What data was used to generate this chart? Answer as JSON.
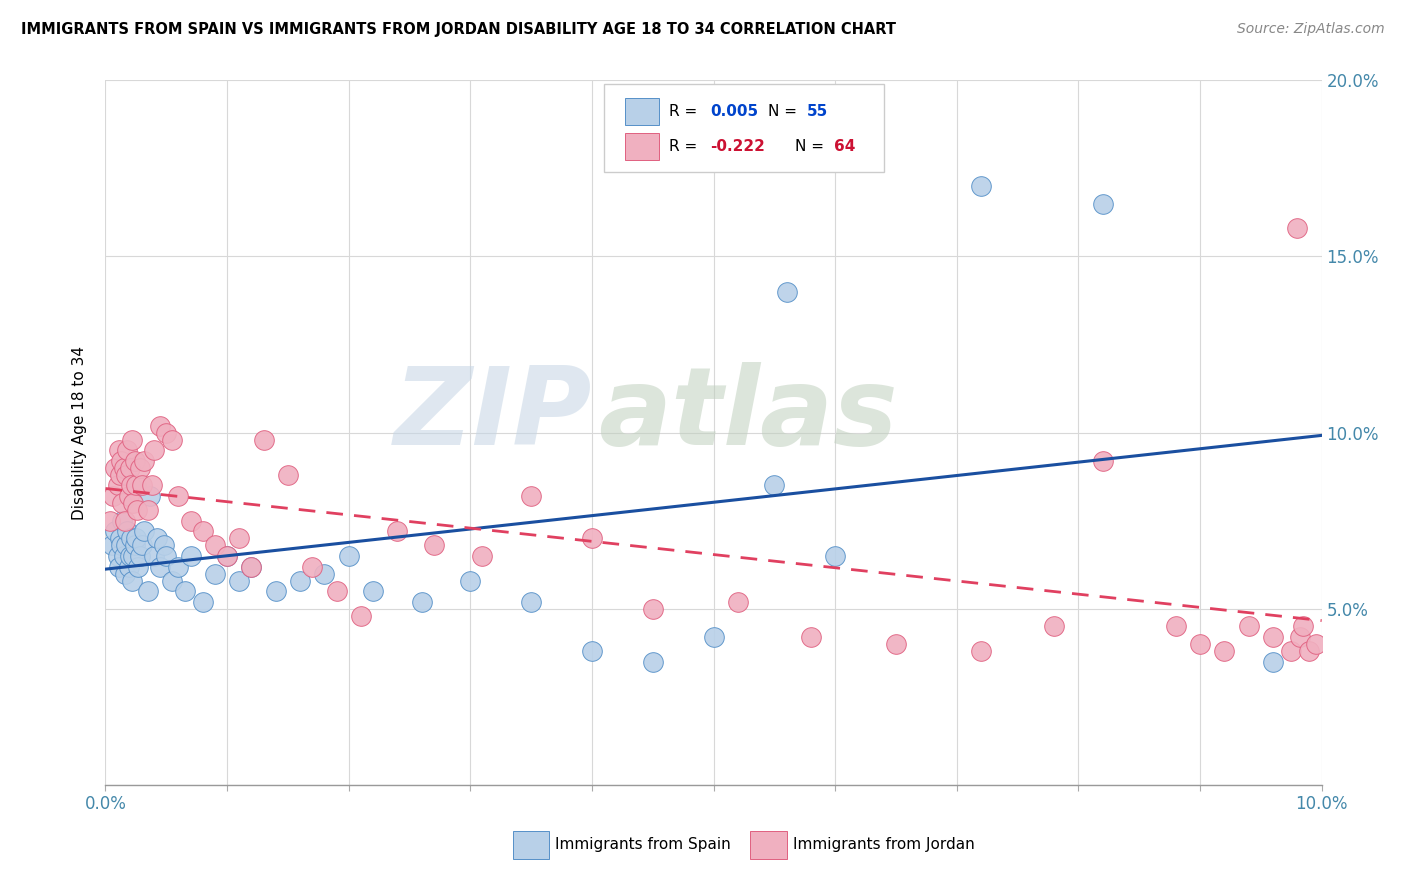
{
  "title": "IMMIGRANTS FROM SPAIN VS IMMIGRANTS FROM JORDAN DISABILITY AGE 18 TO 34 CORRELATION CHART",
  "source": "Source: ZipAtlas.com",
  "ylabel": "Disability Age 18 to 34",
  "xlim": [
    0.0,
    10.0
  ],
  "ylim": [
    0.0,
    20.0
  ],
  "color_spain_fill": "#b8d0e8",
  "color_spain_edge": "#5590c8",
  "color_jordan_fill": "#f0b0c0",
  "color_jordan_edge": "#e06080",
  "color_spain_line": "#1a4fa0",
  "color_jordan_line": "#e04060",
  "color_r_spain": "#0044cc",
  "color_r_jordan": "#cc1133",
  "color_tick": "#4488aa",
  "r_spain_label": "0.005",
  "n_spain_label": "55",
  "r_jordan_label": "-0.222",
  "n_jordan_label": "64",
  "spain_label": "Immigrants from Spain",
  "jordan_label": "Immigrants from Jordan",
  "spain_x": [
    0.05,
    0.08,
    0.1,
    0.11,
    0.12,
    0.13,
    0.14,
    0.15,
    0.16,
    0.17,
    0.18,
    0.19,
    0.2,
    0.21,
    0.22,
    0.23,
    0.24,
    0.25,
    0.27,
    0.28,
    0.3,
    0.32,
    0.35,
    0.37,
    0.4,
    0.42,
    0.45,
    0.48,
    0.5,
    0.55,
    0.6,
    0.65,
    0.7,
    0.8,
    0.9,
    1.0,
    1.1,
    1.2,
    1.4,
    1.6,
    1.8,
    2.0,
    2.2,
    2.6,
    3.0,
    3.5,
    4.0,
    4.5,
    5.0,
    5.5,
    5.6,
    6.0,
    7.2,
    8.2,
    9.6
  ],
  "spain_y": [
    6.8,
    7.2,
    6.5,
    6.2,
    7.0,
    6.8,
    7.5,
    6.5,
    6.0,
    6.8,
    7.2,
    6.2,
    6.5,
    7.0,
    5.8,
    6.5,
    6.8,
    7.0,
    6.2,
    6.5,
    6.8,
    7.2,
    5.5,
    8.2,
    6.5,
    7.0,
    6.2,
    6.8,
    6.5,
    5.8,
    6.2,
    5.5,
    6.5,
    5.2,
    6.0,
    6.5,
    5.8,
    6.2,
    5.5,
    5.8,
    6.0,
    6.5,
    5.5,
    5.2,
    5.8,
    5.2,
    3.8,
    3.5,
    4.2,
    8.5,
    14.0,
    6.5,
    17.0,
    16.5,
    3.5
  ],
  "jordan_x": [
    0.04,
    0.06,
    0.08,
    0.1,
    0.11,
    0.12,
    0.13,
    0.14,
    0.15,
    0.16,
    0.17,
    0.18,
    0.19,
    0.2,
    0.21,
    0.22,
    0.23,
    0.24,
    0.25,
    0.26,
    0.28,
    0.3,
    0.32,
    0.35,
    0.38,
    0.4,
    0.45,
    0.5,
    0.55,
    0.6,
    0.7,
    0.8,
    0.9,
    1.0,
    1.1,
    1.2,
    1.3,
    1.5,
    1.7,
    1.9,
    2.1,
    2.4,
    2.7,
    3.1,
    3.5,
    4.0,
    4.5,
    5.2,
    5.8,
    6.5,
    7.2,
    7.8,
    8.2,
    8.8,
    9.0,
    9.2,
    9.4,
    9.6,
    9.75,
    9.8,
    9.82,
    9.85,
    9.9,
    9.95
  ],
  "jordan_y": [
    7.5,
    8.2,
    9.0,
    8.5,
    9.5,
    8.8,
    9.2,
    8.0,
    9.0,
    7.5,
    8.8,
    9.5,
    8.2,
    9.0,
    8.5,
    9.8,
    8.0,
    9.2,
    8.5,
    7.8,
    9.0,
    8.5,
    9.2,
    7.8,
    8.5,
    9.5,
    10.2,
    10.0,
    9.8,
    8.2,
    7.5,
    7.2,
    6.8,
    6.5,
    7.0,
    6.2,
    9.8,
    8.8,
    6.2,
    5.5,
    4.8,
    7.2,
    6.8,
    6.5,
    8.2,
    7.0,
    5.0,
    5.2,
    4.2,
    4.0,
    3.8,
    4.5,
    9.2,
    4.5,
    4.0,
    3.8,
    4.5,
    4.2,
    3.8,
    15.8,
    4.2,
    4.5,
    3.8,
    4.0
  ]
}
